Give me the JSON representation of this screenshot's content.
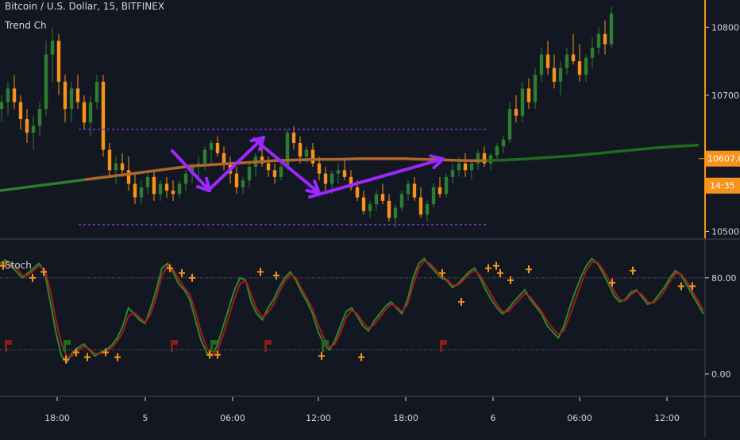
{
  "chart_data": [
    {
      "type": "candlestick",
      "title": "Bitcoin / U.S. Dollar, 15, BITFINEX",
      "indicator_label": "Trend Ch",
      "ylim": [
        10490,
        10840
      ],
      "yticks": [
        {
          "value": 10800,
          "label": "10800.0"
        },
        {
          "value": 10700,
          "label": "10700.0"
        },
        {
          "value": 10500,
          "label": "10500.0"
        }
      ],
      "channel": {
        "upper": 10650,
        "lower": 10510,
        "start_x": 99,
        "end_x": 612
      },
      "current_price": {
        "value": 10607.0,
        "label": "10607.0",
        "countdown": "14:35"
      },
      "candles": [
        [
          10680,
          10700,
          10660,
          10690
        ],
        [
          10690,
          10720,
          10670,
          10710
        ],
        [
          10710,
          10730,
          10680,
          10690
        ],
        [
          10690,
          10700,
          10650,
          10665
        ],
        [
          10665,
          10680,
          10630,
          10645
        ],
        [
          10645,
          10670,
          10620,
          10655
        ],
        [
          10655,
          10690,
          10640,
          10680
        ],
        [
          10680,
          10780,
          10670,
          10760
        ],
        [
          10760,
          10800,
          10720,
          10780
        ],
        [
          10780,
          10790,
          10700,
          10720
        ],
        [
          10720,
          10730,
          10660,
          10680
        ],
        [
          10680,
          10720,
          10660,
          10710
        ],
        [
          10710,
          10730,
          10680,
          10690
        ],
        [
          10690,
          10700,
          10650,
          10660
        ],
        [
          10660,
          10700,
          10640,
          10690
        ],
        [
          10690,
          10730,
          10680,
          10720
        ],
        [
          10720,
          10730,
          10610,
          10620
        ],
        [
          10620,
          10630,
          10580,
          10590
        ],
        [
          10590,
          10610,
          10570,
          10600
        ],
        [
          10600,
          10615,
          10580,
          10590
        ],
        [
          10590,
          10610,
          10560,
          10570
        ],
        [
          10570,
          10585,
          10540,
          10550
        ],
        [
          10550,
          10575,
          10540,
          10565
        ],
        [
          10565,
          10585,
          10555,
          10580
        ],
        [
          10580,
          10590,
          10545,
          10555
        ],
        [
          10555,
          10575,
          10545,
          10570
        ],
        [
          10570,
          10580,
          10550,
          10560
        ],
        [
          10560,
          10575,
          10545,
          10555
        ],
        [
          10555,
          10575,
          10550,
          10570
        ],
        [
          10570,
          10590,
          10560,
          10585
        ],
        [
          10585,
          10600,
          10570,
          10595
        ],
        [
          10595,
          10610,
          10580,
          10600
        ],
        [
          10600,
          10625,
          10590,
          10620
        ],
        [
          10620,
          10635,
          10600,
          10630
        ],
        [
          10630,
          10640,
          10610,
          10615
        ],
        [
          10615,
          10625,
          10590,
          10600
        ],
        [
          10600,
          10610,
          10570,
          10585
        ],
        [
          10585,
          10595,
          10555,
          10565
        ],
        [
          10565,
          10580,
          10555,
          10575
        ],
        [
          10575,
          10600,
          10565,
          10595
        ],
        [
          10595,
          10615,
          10580,
          10610
        ],
        [
          10610,
          10625,
          10595,
          10600
        ],
        [
          10600,
          10610,
          10580,
          10590
        ],
        [
          10590,
          10600,
          10570,
          10580
        ],
        [
          10580,
          10600,
          10575,
          10595
        ],
        [
          10595,
          10650,
          10590,
          10645
        ],
        [
          10645,
          10655,
          10620,
          10630
        ],
        [
          10630,
          10640,
          10600,
          10610
        ],
        [
          10610,
          10625,
          10600,
          10620
        ],
        [
          10620,
          10630,
          10595,
          10600
        ],
        [
          10600,
          10610,
          10575,
          10585
        ],
        [
          10585,
          10595,
          10560,
          10570
        ],
        [
          10570,
          10590,
          10555,
          10585
        ],
        [
          10585,
          10600,
          10570,
          10590
        ],
        [
          10590,
          10605,
          10575,
          10580
        ],
        [
          10580,
          10590,
          10560,
          10565
        ],
        [
          10565,
          10575,
          10545,
          10550
        ],
        [
          10550,
          10560,
          10525,
          10530
        ],
        [
          10530,
          10545,
          10520,
          10540
        ],
        [
          10540,
          10560,
          10530,
          10555
        ],
        [
          10555,
          10570,
          10540,
          10545
        ],
        [
          10545,
          10555,
          10515,
          10520
        ],
        [
          10520,
          10540,
          10505,
          10535
        ],
        [
          10535,
          10560,
          10530,
          10555
        ],
        [
          10555,
          10575,
          10545,
          10570
        ],
        [
          10570,
          10580,
          10545,
          10550
        ],
        [
          10550,
          10565,
          10520,
          10525
        ],
        [
          10525,
          10545,
          10515,
          10540
        ],
        [
          10540,
          10570,
          10535,
          10565
        ],
        [
          10565,
          10580,
          10550,
          10555
        ],
        [
          10555,
          10585,
          10550,
          10580
        ],
        [
          10580,
          10600,
          10570,
          10590
        ],
        [
          10590,
          10610,
          10580,
          10600
        ],
        [
          10600,
          10615,
          10580,
          10590
        ],
        [
          10590,
          10605,
          10575,
          10600
        ],
        [
          10600,
          10620,
          10590,
          10615
        ],
        [
          10615,
          10625,
          10595,
          10600
        ],
        [
          10600,
          10615,
          10590,
          10612
        ],
        [
          10612,
          10630,
          10605,
          10625
        ],
        [
          10625,
          10640,
          10615,
          10635
        ],
        [
          10635,
          10690,
          10630,
          10680
        ],
        [
          10680,
          10700,
          10660,
          10670
        ],
        [
          10670,
          10720,
          10660,
          10710
        ],
        [
          10710,
          10725,
          10680,
          10690
        ],
        [
          10690,
          10740,
          10680,
          10730
        ],
        [
          10730,
          10770,
          10720,
          10760
        ],
        [
          10760,
          10780,
          10730,
          10740
        ],
        [
          10740,
          10760,
          10710,
          10720
        ],
        [
          10720,
          10750,
          10700,
          10740
        ],
        [
          10740,
          10770,
          10730,
          10760
        ],
        [
          10760,
          10790,
          10745,
          10750
        ],
        [
          10750,
          10775,
          10720,
          10730
        ],
        [
          10730,
          10760,
          10720,
          10755
        ],
        [
          10755,
          10785,
          10740,
          10770
        ],
        [
          10770,
          10800,
          10760,
          10790
        ],
        [
          10790,
          10810,
          10760,
          10775
        ],
        [
          10775,
          10830,
          10770,
          10820
        ]
      ],
      "series": [
        {
          "name": "",
          "kind": "moving-average",
          "colors": [
            "#1e7b1e",
            "#e0873a"
          ],
          "values": [
            10560,
            10564,
            10568,
            10572,
            10576,
            10580,
            10584,
            10588,
            10592,
            10596,
            10598,
            10600,
            10602,
            10604,
            10605,
            10606,
            10606,
            10607,
            10607,
            10607,
            10606,
            10605,
            10604,
            10604,
            10605,
            10607,
            10609,
            10611,
            10614,
            10617,
            10620,
            10623,
            10625,
            10627
          ]
        }
      ],
      "annotations": [
        {
          "kind": "arrow",
          "points": [
            [
              10625,
              "a1"
            ],
            [
              10585,
              "a2"
            ]
          ]
        },
        {
          "kind": "arrow",
          "points": [
            [
              10585,
              "b1"
            ],
            [
              10640,
              "b2"
            ]
          ]
        },
        {
          "kind": "arrow",
          "points": [
            [
              10640,
              "c1"
            ],
            [
              10575,
              "c2"
            ]
          ]
        },
        {
          "kind": "arrow",
          "points": [
            [
              10575,
              "d1"
            ],
            [
              10620,
              "d2"
            ]
          ]
        }
      ]
    },
    {
      "type": "line",
      "title": "Stoch",
      "ylim": [
        -8,
        105
      ],
      "yticks": [
        {
          "value": 80,
          "label": "80.00"
        },
        {
          "value": 0,
          "label": "0.00"
        }
      ],
      "levels": [
        80,
        20
      ],
      "series": [
        {
          "name": "",
          "color": "#2a8a2a",
          "values": [
            92,
            95,
            90,
            85,
            80,
            84,
            88,
            92,
            85,
            60,
            35,
            15,
            10,
            18,
            22,
            25,
            20,
            15,
            18,
            20,
            24,
            30,
            40,
            55,
            50,
            45,
            42,
            55,
            70,
            88,
            92,
            85,
            75,
            70,
            62,
            45,
            28,
            18,
            15,
            25,
            40,
            55,
            70,
            80,
            78,
            60,
            50,
            45,
            55,
            62,
            72,
            80,
            85,
            78,
            68,
            60,
            50,
            35,
            25,
            20,
            28,
            40,
            52,
            55,
            48,
            40,
            36,
            44,
            50,
            56,
            60,
            55,
            50,
            62,
            80,
            92,
            96,
            90,
            85,
            80,
            78,
            72,
            75,
            80,
            85,
            88,
            80,
            70,
            62,
            55,
            50,
            54,
            60,
            65,
            70,
            62,
            56,
            50,
            40,
            35,
            30,
            40,
            55,
            68,
            80,
            90,
            96,
            92,
            84,
            75,
            65,
            60,
            62,
            68,
            70,
            64,
            58,
            60,
            66,
            72,
            80,
            86,
            82,
            74,
            66,
            58,
            50
          ]
        },
        {
          "name": "",
          "color": "#a31c1c",
          "values": [
            90,
            93,
            92,
            88,
            82,
            82,
            86,
            90,
            87,
            70,
            45,
            25,
            14,
            15,
            20,
            23,
            21,
            17,
            17,
            19,
            22,
            27,
            35,
            48,
            51,
            47,
            43,
            50,
            64,
            82,
            90,
            87,
            79,
            72,
            66,
            52,
            35,
            22,
            16,
            20,
            33,
            48,
            63,
            75,
            78,
            66,
            54,
            47,
            51,
            58,
            68,
            77,
            83,
            80,
            71,
            63,
            54,
            41,
            30,
            22,
            25,
            35,
            47,
            53,
            50,
            43,
            38,
            41,
            47,
            53,
            58,
            56,
            52,
            58,
            74,
            88,
            94,
            92,
            87,
            82,
            79,
            74,
            74,
            78,
            83,
            86,
            82,
            74,
            66,
            58,
            52,
            52,
            57,
            62,
            67,
            64,
            58,
            52,
            44,
            38,
            33,
            36,
            48,
            61,
            74,
            86,
            93,
            93,
            87,
            79,
            69,
            62,
            61,
            66,
            69,
            66,
            60,
            59,
            63,
            69,
            77,
            84,
            83,
            77,
            69,
            61,
            53
          ]
        }
      ],
      "markers": {
        "orange_crosses": 28,
        "flags_red": 5,
        "flags_green": 2
      }
    }
  ],
  "time_axis": {
    "ticks": [
      "18:00",
      "5",
      "06:00",
      "12:00",
      "18:00",
      "6",
      "06:00",
      "12:00"
    ]
  },
  "colors": {
    "background": "#131722",
    "up": "#2e7d32",
    "down": "#f7931a",
    "channel": "#7b2fd6",
    "arrow": "#9c27ff",
    "grid": "#2a2e39",
    "axis_text": "#d1d4dc",
    "price_tag": "#f7931a",
    "stoch_level": "#787b86"
  }
}
